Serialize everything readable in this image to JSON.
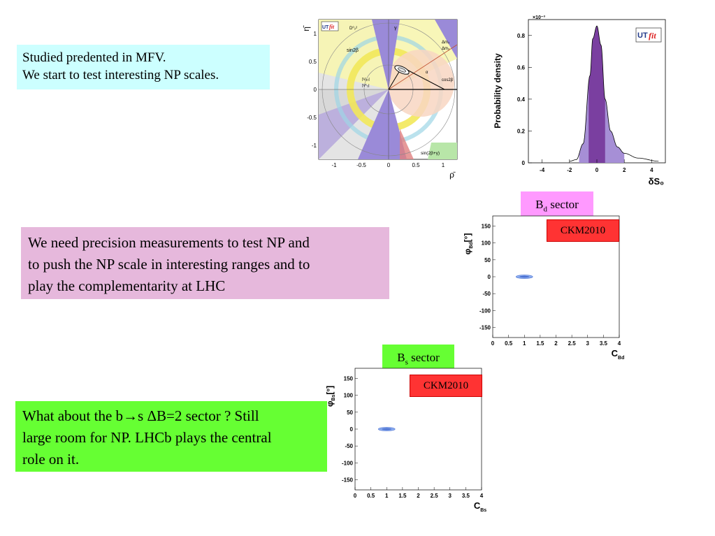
{
  "text_boxes": {
    "mfv": [
      "Studied predented in MFV.",
      "We start to test interesting NP scales."
    ],
    "precision": [
      "We need precision measurements to test NP and",
      "to push the NP scale in  interesting ranges and to",
      "play the complementarity at LHC"
    ],
    "bs_sector": [
      "What about the b→s  ΔB=2 sector ? Still",
      "large room for NP. LHCb plays the central",
      "role on it."
    ]
  },
  "tags": {
    "bd_sector": {
      "main": "B",
      "sub": "d",
      "rest": " sector"
    },
    "bs_sector": {
      "main": "B",
      "sub": "s",
      "rest": " sector"
    },
    "ckm2010": "CKM2010"
  },
  "ut_plot": {
    "xlabel": "ρ̄",
    "ylabel": "η̄",
    "x_ticks": [
      "-1",
      "-0.5",
      "0",
      "0.5",
      "1"
    ],
    "y_ticks": [
      "1",
      "0.5",
      "0",
      "-0.5",
      "-1"
    ],
    "logo": {
      "ut": "UT",
      "fit": "fit"
    },
    "constraint_labels": [
      "D⁰₂²",
      "γ",
      "sin2β",
      "Δm₂",
      "Δm₂",
      "|Vᵤ₂|",
      "|Vᶜ₂|",
      "α",
      "cos2β",
      "sin(2β+γ)"
    ]
  },
  "chart_data": [
    {
      "type": "area",
      "title": "",
      "xlabel": "δS₀",
      "ylabel": "Probability density",
      "y_multiplier": "×10⁻³",
      "x": [
        -2,
        -1.5,
        -1,
        -0.5,
        -0.3,
        0,
        0.3,
        0.6,
        1,
        1.5,
        2,
        3,
        4.5
      ],
      "y": [
        0.01,
        0.02,
        0.12,
        0.55,
        0.78,
        0.86,
        0.74,
        0.4,
        0.2,
        0.1,
        0.06,
        0.03,
        0.01
      ],
      "xlim": [
        -5,
        5
      ],
      "ylim": [
        0,
        0.9
      ],
      "x_ticks": [
        "-4",
        "-2",
        "0",
        "2",
        "4"
      ],
      "y_ticks": [
        "0",
        "0.2",
        "0.4",
        "0.6",
        "0.8"
      ],
      "colors": {
        "inner": "#7a3fa0",
        "outer": "#a68fd6"
      },
      "logo": {
        "ut": "UT",
        "fit": "fit"
      }
    },
    {
      "type": "scatter",
      "xlabel": "C",
      "xlabel_sub": "Bd",
      "ylabel": "φ",
      "ylabel_sub": "Bd",
      "ylabel_unit": "[°]",
      "points": [
        {
          "x": 1.0,
          "y": 0
        }
      ],
      "xlim": [
        0,
        4
      ],
      "ylim": [
        -180,
        180
      ],
      "x_ticks": [
        "0",
        "0.5",
        "1",
        "1.5",
        "2",
        "2.5",
        "3",
        "3.5",
        "4"
      ],
      "y_ticks": [
        "150",
        "100",
        "50",
        "0",
        "-50",
        "-100",
        "-150"
      ],
      "color": "#4a6fd1"
    },
    {
      "type": "scatter",
      "xlabel": "C",
      "xlabel_sub": "Bs",
      "ylabel": "φ",
      "ylabel_sub": "Bs",
      "ylabel_unit": "[°]",
      "points": [
        {
          "x": 1.0,
          "y": 0
        }
      ],
      "xlim": [
        0,
        4
      ],
      "ylim": [
        -180,
        180
      ],
      "x_ticks": [
        "0",
        "0.5",
        "1",
        "1.5",
        "2",
        "2.5",
        "3",
        "3.5",
        "4"
      ],
      "y_ticks": [
        "150",
        "100",
        "50",
        "0",
        "-50",
        "-100",
        "-150"
      ],
      "color": "#4a6fd1"
    }
  ]
}
